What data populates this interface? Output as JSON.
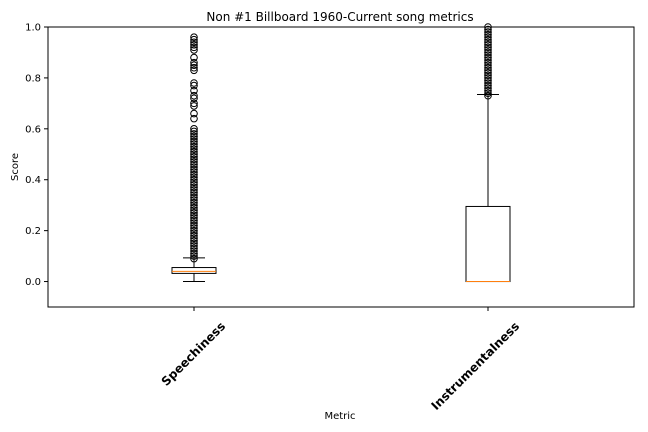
{
  "chart_data": {
    "type": "box",
    "title": "Non #1 Billboard 1960-Current song metrics",
    "xlabel": "Metric",
    "ylabel": "Score",
    "ylim": [
      -0.1,
      1.0
    ],
    "yticks": [
      "0.0",
      "0.2",
      "0.4",
      "0.6",
      "0.8",
      "1.0"
    ],
    "grid": false,
    "categories": [
      "Speechiness",
      "Instrumentalness"
    ],
    "boxes": [
      {
        "name": "Speechiness",
        "whisker_low": 0.0,
        "q1": 0.032,
        "median": 0.04,
        "q3": 0.055,
        "whisker_high": 0.093,
        "outliers": [
          0.09,
          0.1,
          0.11,
          0.12,
          0.13,
          0.14,
          0.15,
          0.16,
          0.17,
          0.18,
          0.19,
          0.2,
          0.21,
          0.22,
          0.23,
          0.24,
          0.25,
          0.26,
          0.27,
          0.28,
          0.29,
          0.3,
          0.31,
          0.32,
          0.33,
          0.34,
          0.35,
          0.36,
          0.37,
          0.38,
          0.39,
          0.4,
          0.41,
          0.42,
          0.43,
          0.44,
          0.45,
          0.46,
          0.47,
          0.48,
          0.49,
          0.5,
          0.51,
          0.52,
          0.53,
          0.54,
          0.55,
          0.56,
          0.57,
          0.58,
          0.59,
          0.6,
          0.64,
          0.66,
          0.69,
          0.7,
          0.72,
          0.73,
          0.75,
          0.77,
          0.78,
          0.83,
          0.84,
          0.85,
          0.86,
          0.88,
          0.91,
          0.92,
          0.93,
          0.94,
          0.95,
          0.96
        ]
      },
      {
        "name": "Instrumentalness",
        "whisker_low": 0.0,
        "q1": 0.0,
        "median": 0.0,
        "q3": 0.295,
        "whisker_high": 0.735,
        "outliers": [
          0.73,
          0.74,
          0.75,
          0.76,
          0.77,
          0.78,
          0.79,
          0.8,
          0.81,
          0.82,
          0.83,
          0.84,
          0.85,
          0.86,
          0.87,
          0.88,
          0.89,
          0.9,
          0.91,
          0.92,
          0.93,
          0.94,
          0.95,
          0.96,
          0.97,
          0.98,
          0.99,
          1.0
        ]
      }
    ],
    "colors": {
      "box": "#000000",
      "median": "#ff7f0e",
      "outlier": "#000000"
    }
  }
}
